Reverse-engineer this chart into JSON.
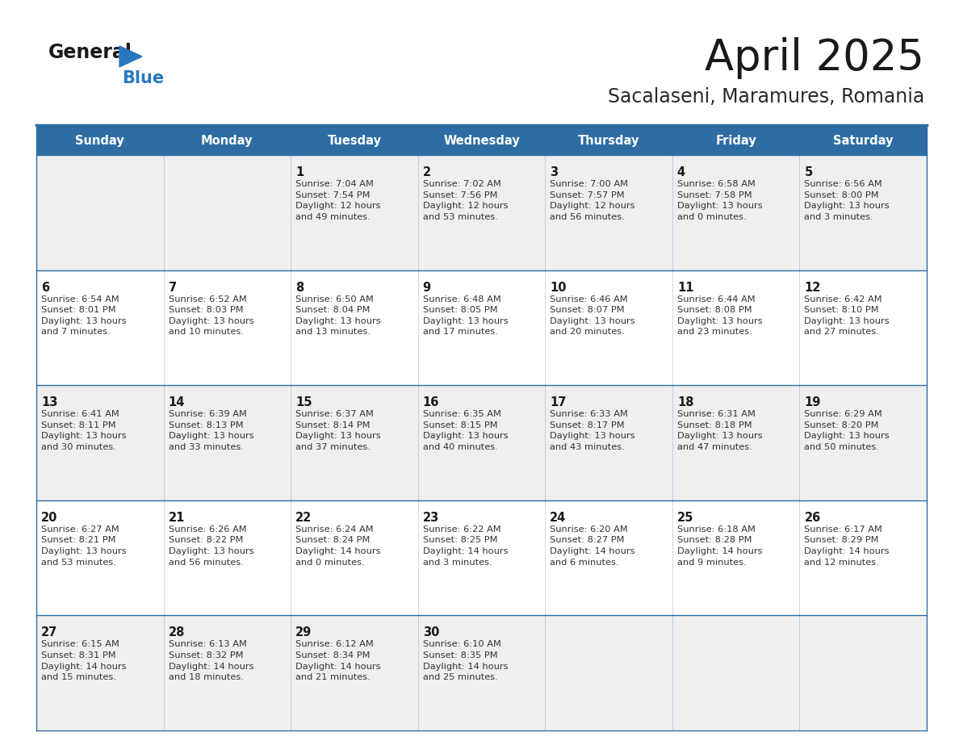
{
  "title": "April 2025",
  "subtitle": "Sacalaseni, Maramures, Romania",
  "header_bg": "#2e6da4",
  "header_text": "#ffffff",
  "row_bg_odd": "#efefef",
  "row_bg_even": "#ffffff",
  "cell_border": "#2e6da4",
  "day_headers": [
    "Sunday",
    "Monday",
    "Tuesday",
    "Wednesday",
    "Thursday",
    "Friday",
    "Saturday"
  ],
  "title_color": "#1a1a1a",
  "subtitle_color": "#2a2a2a",
  "day_num_color": "#1a1a1a",
  "cell_text_color": "#333333",
  "logo_general_color": "#1a1a1a",
  "logo_blue_color": "#2878c0",
  "weeks": [
    [
      {
        "day": "",
        "text": ""
      },
      {
        "day": "",
        "text": ""
      },
      {
        "day": "1",
        "text": "Sunrise: 7:04 AM\nSunset: 7:54 PM\nDaylight: 12 hours\nand 49 minutes."
      },
      {
        "day": "2",
        "text": "Sunrise: 7:02 AM\nSunset: 7:56 PM\nDaylight: 12 hours\nand 53 minutes."
      },
      {
        "day": "3",
        "text": "Sunrise: 7:00 AM\nSunset: 7:57 PM\nDaylight: 12 hours\nand 56 minutes."
      },
      {
        "day": "4",
        "text": "Sunrise: 6:58 AM\nSunset: 7:58 PM\nDaylight: 13 hours\nand 0 minutes."
      },
      {
        "day": "5",
        "text": "Sunrise: 6:56 AM\nSunset: 8:00 PM\nDaylight: 13 hours\nand 3 minutes."
      }
    ],
    [
      {
        "day": "6",
        "text": "Sunrise: 6:54 AM\nSunset: 8:01 PM\nDaylight: 13 hours\nand 7 minutes."
      },
      {
        "day": "7",
        "text": "Sunrise: 6:52 AM\nSunset: 8:03 PM\nDaylight: 13 hours\nand 10 minutes."
      },
      {
        "day": "8",
        "text": "Sunrise: 6:50 AM\nSunset: 8:04 PM\nDaylight: 13 hours\nand 13 minutes."
      },
      {
        "day": "9",
        "text": "Sunrise: 6:48 AM\nSunset: 8:05 PM\nDaylight: 13 hours\nand 17 minutes."
      },
      {
        "day": "10",
        "text": "Sunrise: 6:46 AM\nSunset: 8:07 PM\nDaylight: 13 hours\nand 20 minutes."
      },
      {
        "day": "11",
        "text": "Sunrise: 6:44 AM\nSunset: 8:08 PM\nDaylight: 13 hours\nand 23 minutes."
      },
      {
        "day": "12",
        "text": "Sunrise: 6:42 AM\nSunset: 8:10 PM\nDaylight: 13 hours\nand 27 minutes."
      }
    ],
    [
      {
        "day": "13",
        "text": "Sunrise: 6:41 AM\nSunset: 8:11 PM\nDaylight: 13 hours\nand 30 minutes."
      },
      {
        "day": "14",
        "text": "Sunrise: 6:39 AM\nSunset: 8:13 PM\nDaylight: 13 hours\nand 33 minutes."
      },
      {
        "day": "15",
        "text": "Sunrise: 6:37 AM\nSunset: 8:14 PM\nDaylight: 13 hours\nand 37 minutes."
      },
      {
        "day": "16",
        "text": "Sunrise: 6:35 AM\nSunset: 8:15 PM\nDaylight: 13 hours\nand 40 minutes."
      },
      {
        "day": "17",
        "text": "Sunrise: 6:33 AM\nSunset: 8:17 PM\nDaylight: 13 hours\nand 43 minutes."
      },
      {
        "day": "18",
        "text": "Sunrise: 6:31 AM\nSunset: 8:18 PM\nDaylight: 13 hours\nand 47 minutes."
      },
      {
        "day": "19",
        "text": "Sunrise: 6:29 AM\nSunset: 8:20 PM\nDaylight: 13 hours\nand 50 minutes."
      }
    ],
    [
      {
        "day": "20",
        "text": "Sunrise: 6:27 AM\nSunset: 8:21 PM\nDaylight: 13 hours\nand 53 minutes."
      },
      {
        "day": "21",
        "text": "Sunrise: 6:26 AM\nSunset: 8:22 PM\nDaylight: 13 hours\nand 56 minutes."
      },
      {
        "day": "22",
        "text": "Sunrise: 6:24 AM\nSunset: 8:24 PM\nDaylight: 14 hours\nand 0 minutes."
      },
      {
        "day": "23",
        "text": "Sunrise: 6:22 AM\nSunset: 8:25 PM\nDaylight: 14 hours\nand 3 minutes."
      },
      {
        "day": "24",
        "text": "Sunrise: 6:20 AM\nSunset: 8:27 PM\nDaylight: 14 hours\nand 6 minutes."
      },
      {
        "day": "25",
        "text": "Sunrise: 6:18 AM\nSunset: 8:28 PM\nDaylight: 14 hours\nand 9 minutes."
      },
      {
        "day": "26",
        "text": "Sunrise: 6:17 AM\nSunset: 8:29 PM\nDaylight: 14 hours\nand 12 minutes."
      }
    ],
    [
      {
        "day": "27",
        "text": "Sunrise: 6:15 AM\nSunset: 8:31 PM\nDaylight: 14 hours\nand 15 minutes."
      },
      {
        "day": "28",
        "text": "Sunrise: 6:13 AM\nSunset: 8:32 PM\nDaylight: 14 hours\nand 18 minutes."
      },
      {
        "day": "29",
        "text": "Sunrise: 6:12 AM\nSunset: 8:34 PM\nDaylight: 14 hours\nand 21 minutes."
      },
      {
        "day": "30",
        "text": "Sunrise: 6:10 AM\nSunset: 8:35 PM\nDaylight: 14 hours\nand 25 minutes."
      },
      {
        "day": "",
        "text": ""
      },
      {
        "day": "",
        "text": ""
      },
      {
        "day": "",
        "text": ""
      }
    ]
  ]
}
